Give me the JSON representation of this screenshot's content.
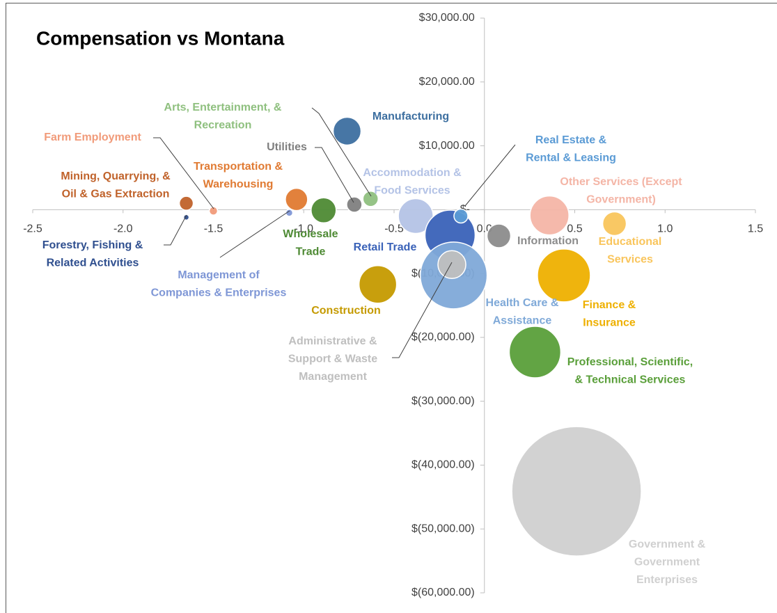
{
  "chart_data": {
    "type": "bubble",
    "title": "Compensation vs Montana",
    "xlim": [
      -2.5,
      1.5
    ],
    "xticks": [
      -2.5,
      {
        "value": -2,
        "label": "-2.0"
      },
      -1.5,
      {
        "value": -1,
        "label": "-1.0"
      },
      -0.5,
      {
        "value": 0,
        "label": "0.0"
      },
      0.5,
      {
        "value": 1,
        "label": "1.0"
      },
      1.5
    ],
    "ylim": [
      -60000,
      30000
    ],
    "yticks": [
      {
        "value": 30000,
        "label": "$30,000.00"
      },
      {
        "value": 20000,
        "label": "$20,000.00"
      },
      {
        "value": 10000,
        "label": "$10,000.00"
      },
      {
        "value": 0,
        "label": "$-"
      },
      {
        "value": -10000,
        "label": "$(10,000.00)"
      },
      {
        "value": -20000,
        "label": "$(20,000.00)"
      },
      {
        "value": -30000,
        "label": "$(30,000.00)"
      },
      {
        "value": -40000,
        "label": "$(40,000.00)"
      },
      {
        "value": -50000,
        "label": "$(50,000.00)"
      },
      {
        "value": -60000,
        "label": "$(60,000.00)"
      }
    ],
    "series": [
      {
        "name": [
          "Mining, Quarrying, &",
          "Oil & Gas Extraction"
        ],
        "color": "#c0622a",
        "x": [
          -1.65
        ],
        "values": [
          1000
        ],
        "sizes": [
          100
        ]
      },
      {
        "name": [
          "Forestry, Fishing &",
          "Related Activities"
        ],
        "color": "#2f4f8f",
        "x": [
          -1.65
        ],
        "values": [
          -1200
        ],
        "sizes": [
          16
        ]
      },
      {
        "name": [
          "Farm Employment"
        ],
        "color": "#f19b7a",
        "x": [
          -1.5
        ],
        "values": [
          -200
        ],
        "sizes": [
          36
        ]
      },
      {
        "name": [
          "Management of",
          "Companies & Enterprises"
        ],
        "color": "#7f97d6",
        "x": [
          -1.08
        ],
        "values": [
          -500
        ],
        "sizes": [
          25
        ]
      },
      {
        "name": [
          "Transportation &",
          "Warehousing"
        ],
        "color": "#e07a32",
        "x": [
          -1.04
        ],
        "values": [
          1600
        ],
        "sizes": [
          256
        ]
      },
      {
        "name": [
          "Wholesale",
          "Trade"
        ],
        "color": "#4e8a34",
        "x": [
          -0.89
        ],
        "values": [
          -100
        ],
        "sizes": [
          324
        ]
      },
      {
        "name": [
          "Utilities"
        ],
        "color": "#7f7f7f",
        "x": [
          -0.72
        ],
        "values": [
          800
        ],
        "sizes": [
          121
        ]
      },
      {
        "name": [
          "Arts, Entertainment, &",
          "Recreation"
        ],
        "color": "#8fc07f",
        "x": [
          -0.63
        ],
        "values": [
          1700
        ],
        "sizes": [
          121
        ]
      },
      {
        "name": [
          "Manufacturing"
        ],
        "color": "#3d6fa0",
        "x": [
          -0.76
        ],
        "values": [
          12300
        ],
        "sizes": [
          400
        ]
      },
      {
        "name": [
          "Accommodation &",
          "Food Services"
        ],
        "color": "#b4c3e6",
        "x": [
          -0.38
        ],
        "values": [
          -1000
        ],
        "sizes": [
          625
        ]
      },
      {
        "name": [
          "Retail Trade"
        ],
        "color": "#3a62b8",
        "x": [
          -0.19
        ],
        "values": [
          -4000
        ],
        "sizes": [
          1296
        ]
      },
      {
        "name": [
          "Health Care &",
          "Assistance"
        ],
        "color": "#7fa9d8",
        "x": [
          -0.17
        ],
        "values": [
          -10300
        ],
        "sizes": [
          2304
        ]
      },
      {
        "name": [
          "Administrative &",
          "Support & Waste",
          "Management"
        ],
        "color": "#bfbfbf",
        "x": [
          -0.18
        ],
        "values": [
          -8600
        ],
        "sizes": [
          400
        ]
      },
      {
        "name": [
          "Real Estate &",
          "Rental & Leasing"
        ],
        "color": "#5b9bd5",
        "x": [
          -0.13
        ],
        "values": [
          -1000
        ],
        "sizes": [
          100
        ]
      },
      {
        "name": [
          "Information"
        ],
        "color": "#8c8c8c",
        "x": [
          0.08
        ],
        "values": [
          -4100
        ],
        "sizes": [
          289
        ]
      },
      {
        "name": [
          "Other Services (Except",
          "Government)"
        ],
        "color": "#f4b5a6",
        "x": [
          0.36
        ],
        "values": [
          -900
        ],
        "sizes": [
          784
        ]
      },
      {
        "name": [
          "Educational",
          "Services"
        ],
        "color": "#f9c55c",
        "x": [
          0.72
        ],
        "values": [
          -2200
        ],
        "sizes": [
          289
        ]
      },
      {
        "name": [
          "Finance &",
          "Insurance"
        ],
        "color": "#eeb000",
        "x": [
          0.44
        ],
        "values": [
          -10300
        ],
        "sizes": [
          1444
        ]
      },
      {
        "name": [
          "Construction"
        ],
        "color": "#c59a00",
        "x": [
          -0.59
        ],
        "values": [
          -11700
        ],
        "sizes": [
          729
        ]
      },
      {
        "name": [
          "Professional, Scientific,",
          "& Technical Services"
        ],
        "color": "#5a9f3a",
        "x": [
          0.28
        ],
        "values": [
          -22300
        ],
        "sizes": [
          1369
        ]
      },
      {
        "name": [
          "Government &",
          "Government",
          "Enterprises"
        ],
        "color": "#d0d0d0",
        "x": [
          0.51
        ],
        "values": [
          -44100
        ],
        "sizes": [
          8649
        ]
      }
    ]
  }
}
